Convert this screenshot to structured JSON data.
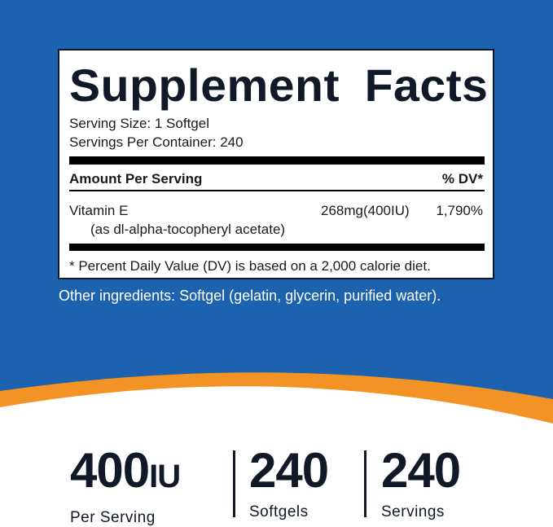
{
  "colors": {
    "blue": "#1c62ae",
    "orange": "#f39325",
    "dark": "#111827"
  },
  "label": {
    "title": "Supplement Facts",
    "serving_size": "Serving Size: 1 Softgel",
    "servings_per_container": "Servings Per Container: 240",
    "amount_header": "Amount Per Serving",
    "dv_header": "% DV*",
    "nutrient": {
      "name": "Vitamin E",
      "form": "(as dl-alpha-tocopheryl acetate)",
      "amount": "268mg(400IU)",
      "dv": "1,790%"
    },
    "footnote": "* Percent Daily Value (DV) is based on a 2,000 calorie diet."
  },
  "other_ingredients": "Other ingredients: Softgel (gelatin, glycerin, purified water).",
  "stats": [
    {
      "value": "400",
      "unit": "IU",
      "label": "Per Serving"
    },
    {
      "value": "240",
      "label": "Softgels"
    },
    {
      "value": "240",
      "label": "Servings"
    }
  ]
}
